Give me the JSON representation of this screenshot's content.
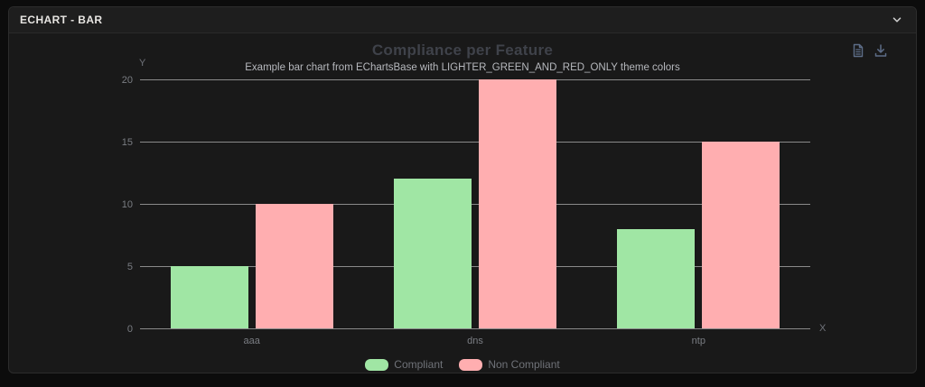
{
  "panel": {
    "title": "ECHART - BAR"
  },
  "icons": {
    "collapse": "chevron-down",
    "toolbox": [
      "data-view",
      "download"
    ]
  },
  "colors": {
    "page_bg": "#0c0c0c",
    "card_bg": "#191919",
    "header_bg": "#1e1e1e",
    "card_border": "#2c2c2c",
    "grid_line": "#8a8a8a",
    "chart_title": "#3f424a",
    "chart_subtitle": "#b6b8bd",
    "axis_label": "#7a7d83",
    "legend_text": "#6f7278",
    "toolbox_icon": "#5d6d88",
    "header_text": "#e7e5e2",
    "compliant_green": "#a0e6a4",
    "non_compliant_pink": "#ffaeb0"
  },
  "chart_data": {
    "type": "bar",
    "title": "Compliance per Feature",
    "subtitle": "Example bar chart from EChartsBase with LIGHTER_GREEN_AND_RED_ONLY theme colors",
    "categories": [
      "aaa",
      "dns",
      "ntp"
    ],
    "series": [
      {
        "name": "Compliant",
        "color": "#a0e6a4",
        "values": [
          5,
          12,
          8
        ]
      },
      {
        "name": "Non Compliant",
        "color": "#ffaeb0",
        "values": [
          10,
          20,
          15
        ]
      }
    ],
    "xlabel": "X",
    "ylabel": "Y",
    "ylim": [
      0,
      20
    ],
    "yticks": [
      0,
      5,
      10,
      15,
      20
    ],
    "grid": true,
    "legend_position": "bottom"
  }
}
